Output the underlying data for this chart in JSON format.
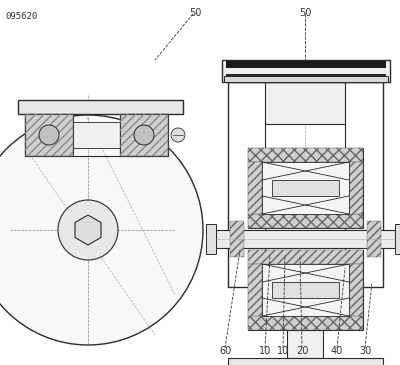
{
  "bg_color": "#ffffff",
  "line_color": "#2a2a2a",
  "title_text": "095620",
  "fig_width": 4.0,
  "fig_height": 3.65,
  "dpi": 100,
  "labels_bottom": [
    "60",
    "10",
    "10",
    "20",
    "40",
    "30"
  ]
}
